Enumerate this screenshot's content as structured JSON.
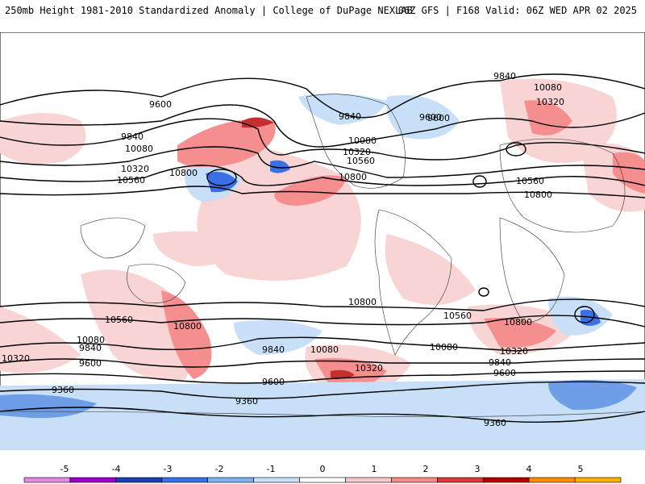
{
  "header": {
    "title": "250mb Height 1981-2010 Standardized Anomaly | College of DuPage NEXLAB",
    "run_info": "06Z GFS | F168 Valid: 06Z WED APR 02 2025"
  },
  "colorbar": {
    "ticks": [
      "-5",
      "-4",
      "-3",
      "-2",
      "-1",
      "0",
      "1",
      "2",
      "3",
      "4",
      "5"
    ],
    "colors": [
      "#e08be0",
      "#9b00c8",
      "#1b3fb0",
      "#3a6fe6",
      "#7fb0f0",
      "#c8e0f7",
      "#ffffff",
      "#f5c8c8",
      "#f58a8a",
      "#d83a3a",
      "#b00000",
      "#ff8c00",
      "#ffb000"
    ]
  },
  "map": {
    "contour_labels": [
      "9600",
      "9840",
      "10080",
      "10320",
      "10560",
      "10800",
      "9600",
      "9840",
      "10080",
      "10320",
      "10560",
      "10800",
      "9840",
      "10080",
      "10320",
      "9600",
      "10560",
      "10800",
      "10800",
      "10560",
      "10800",
      "10320",
      "10080",
      "9840",
      "9600",
      "9360",
      "9840",
      "10080",
      "10320",
      "9600",
      "9360",
      "10560",
      "10800",
      "10320",
      "10080",
      "9840",
      "9600",
      "9360"
    ]
  }
}
